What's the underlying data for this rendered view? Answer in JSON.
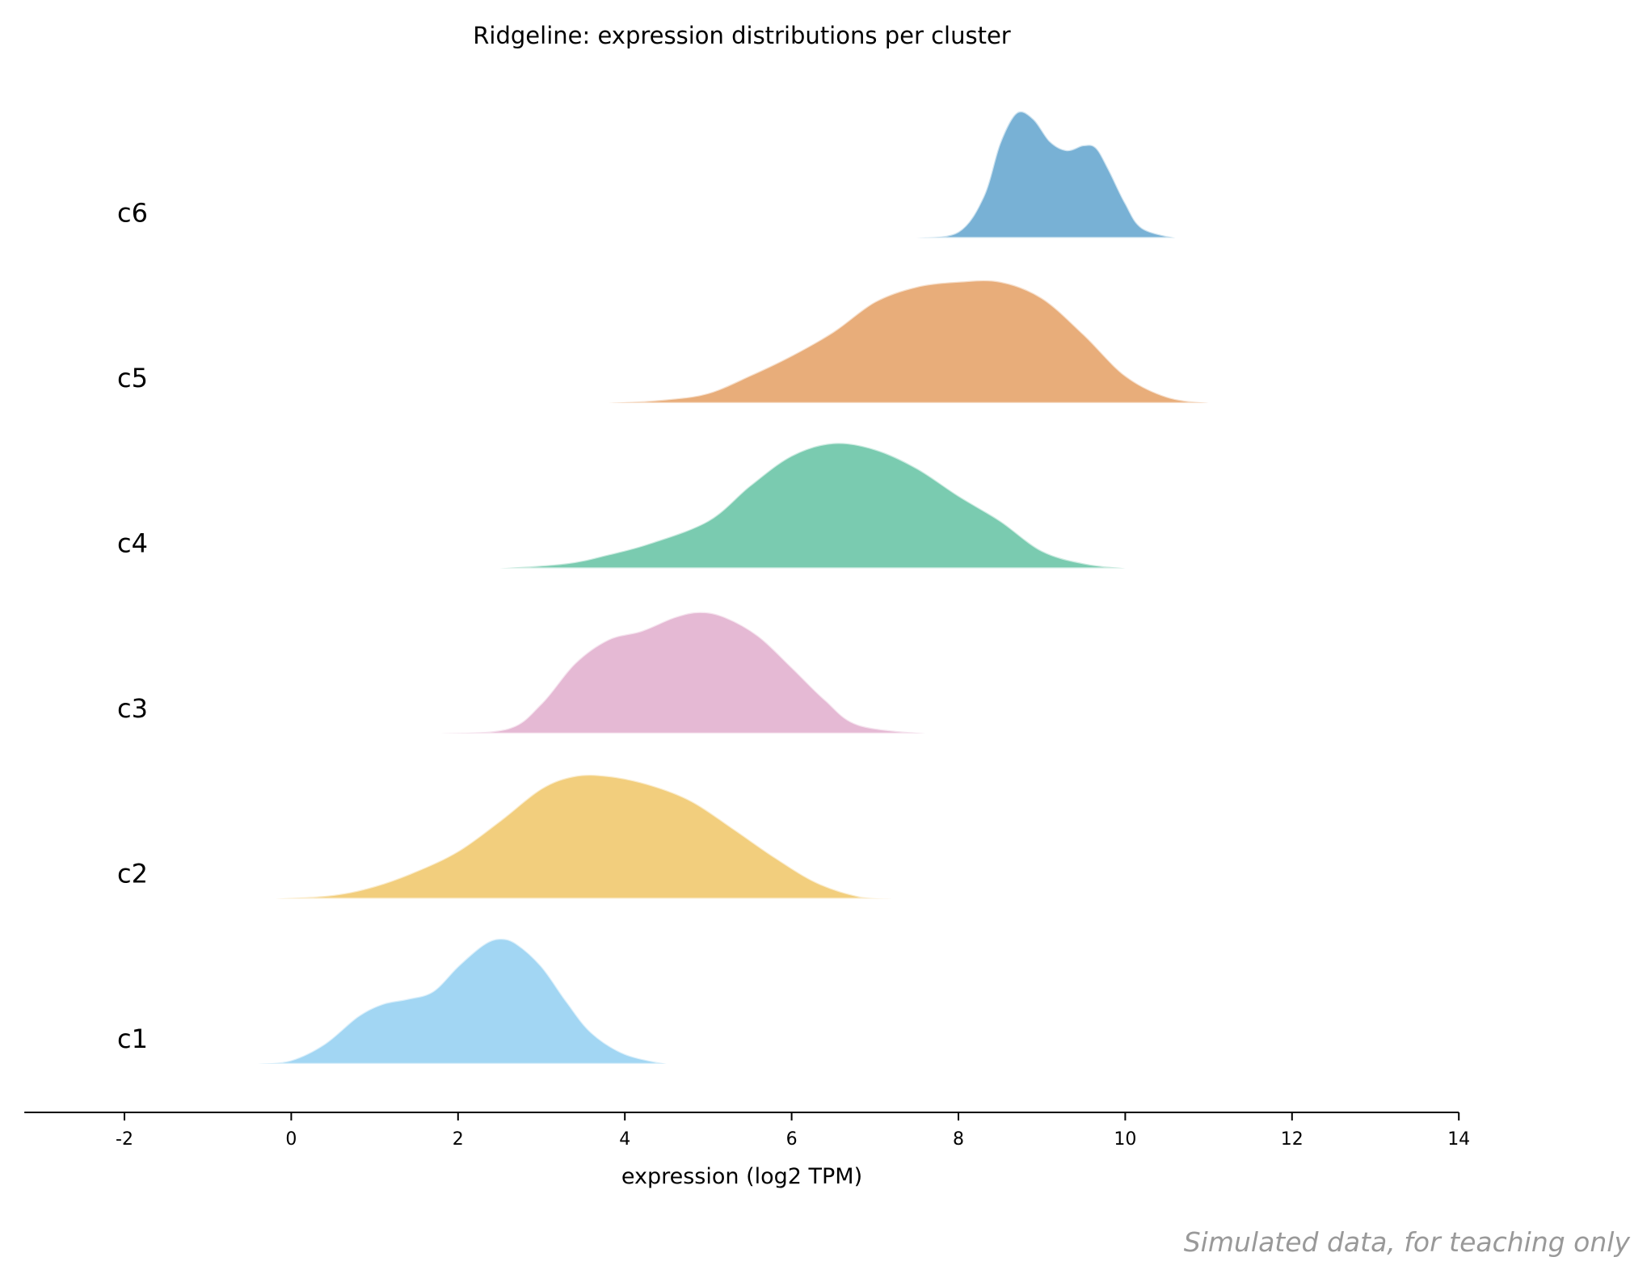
{
  "chart_data": {
    "type": "area",
    "subtype": "ridgeline",
    "title": "Ridgeline: expression distributions per cluster",
    "xlabel": "expression (log2 TPM)",
    "ylabel": "",
    "xlim": [
      -3.2,
      14
    ],
    "xticks": [
      -2,
      0,
      2,
      4,
      6,
      8,
      10,
      12,
      14
    ],
    "xtick_labels": [
      "-2",
      "0",
      "2",
      "4",
      "6",
      "8",
      "10",
      "12",
      "14"
    ],
    "grid": false,
    "legend": "none",
    "series": [
      {
        "name": "c1",
        "color": "#8ecdf0",
        "points": [
          [
            -0.4,
            0
          ],
          [
            0,
            0.03
          ],
          [
            0.4,
            0.16
          ],
          [
            0.8,
            0.38
          ],
          [
            1.1,
            0.48
          ],
          [
            1.4,
            0.52
          ],
          [
            1.7,
            0.58
          ],
          [
            2.0,
            0.78
          ],
          [
            2.3,
            0.95
          ],
          [
            2.5,
            1.0
          ],
          [
            2.7,
            0.96
          ],
          [
            3.0,
            0.78
          ],
          [
            3.3,
            0.5
          ],
          [
            3.6,
            0.25
          ],
          [
            4.0,
            0.08
          ],
          [
            4.5,
            0
          ]
        ]
      },
      {
        "name": "c2",
        "color": "#efc360",
        "points": [
          [
            -0.2,
            0
          ],
          [
            0.5,
            0.03
          ],
          [
            1.0,
            0.1
          ],
          [
            1.5,
            0.22
          ],
          [
            2.0,
            0.38
          ],
          [
            2.5,
            0.62
          ],
          [
            3.0,
            0.88
          ],
          [
            3.4,
            0.98
          ],
          [
            3.8,
            0.98
          ],
          [
            4.3,
            0.91
          ],
          [
            4.8,
            0.78
          ],
          [
            5.3,
            0.56
          ],
          [
            5.8,
            0.33
          ],
          [
            6.3,
            0.13
          ],
          [
            6.8,
            0.02
          ],
          [
            7.2,
            0
          ]
        ]
      },
      {
        "name": "c3",
        "color": "#dfa9cb",
        "points": [
          [
            1.8,
            0
          ],
          [
            2.6,
            0.04
          ],
          [
            3.0,
            0.24
          ],
          [
            3.4,
            0.56
          ],
          [
            3.8,
            0.75
          ],
          [
            4.2,
            0.82
          ],
          [
            4.6,
            0.93
          ],
          [
            4.9,
            0.97
          ],
          [
            5.2,
            0.93
          ],
          [
            5.6,
            0.78
          ],
          [
            6.0,
            0.53
          ],
          [
            6.4,
            0.27
          ],
          [
            6.8,
            0.07
          ],
          [
            7.6,
            0
          ]
        ]
      },
      {
        "name": "c4",
        "color": "#5dbf9f",
        "points": [
          [
            2.5,
            0
          ],
          [
            3.3,
            0.04
          ],
          [
            3.8,
            0.11
          ],
          [
            4.3,
            0.2
          ],
          [
            5.0,
            0.38
          ],
          [
            5.5,
            0.66
          ],
          [
            6.0,
            0.9
          ],
          [
            6.5,
            1.0
          ],
          [
            7.0,
            0.95
          ],
          [
            7.5,
            0.8
          ],
          [
            8.0,
            0.58
          ],
          [
            8.5,
            0.38
          ],
          [
            9.0,
            0.14
          ],
          [
            9.5,
            0.04
          ],
          [
            10.0,
            0
          ]
        ]
      },
      {
        "name": "c5",
        "color": "#e39b5d",
        "points": [
          [
            3.8,
            0
          ],
          [
            4.5,
            0.03
          ],
          [
            5.0,
            0.08
          ],
          [
            5.5,
            0.22
          ],
          [
            6.0,
            0.38
          ],
          [
            6.5,
            0.57
          ],
          [
            7.0,
            0.81
          ],
          [
            7.5,
            0.93
          ],
          [
            8.0,
            0.97
          ],
          [
            8.5,
            0.97
          ],
          [
            9.0,
            0.84
          ],
          [
            9.5,
            0.55
          ],
          [
            10.0,
            0.22
          ],
          [
            10.5,
            0.05
          ],
          [
            11.0,
            0
          ]
        ]
      },
      {
        "name": "c6",
        "color": "#5aa0cc",
        "points": [
          [
            7.5,
            0
          ],
          [
            8.0,
            0.05
          ],
          [
            8.3,
            0.33
          ],
          [
            8.5,
            0.76
          ],
          [
            8.7,
            1.0
          ],
          [
            8.9,
            0.95
          ],
          [
            9.1,
            0.77
          ],
          [
            9.3,
            0.7
          ],
          [
            9.5,
            0.74
          ],
          [
            9.65,
            0.72
          ],
          [
            9.8,
            0.55
          ],
          [
            10.0,
            0.28
          ],
          [
            10.2,
            0.08
          ],
          [
            10.6,
            0
          ]
        ]
      }
    ]
  },
  "annotations": {
    "footer_note": "Simulated data, for teaching only"
  }
}
